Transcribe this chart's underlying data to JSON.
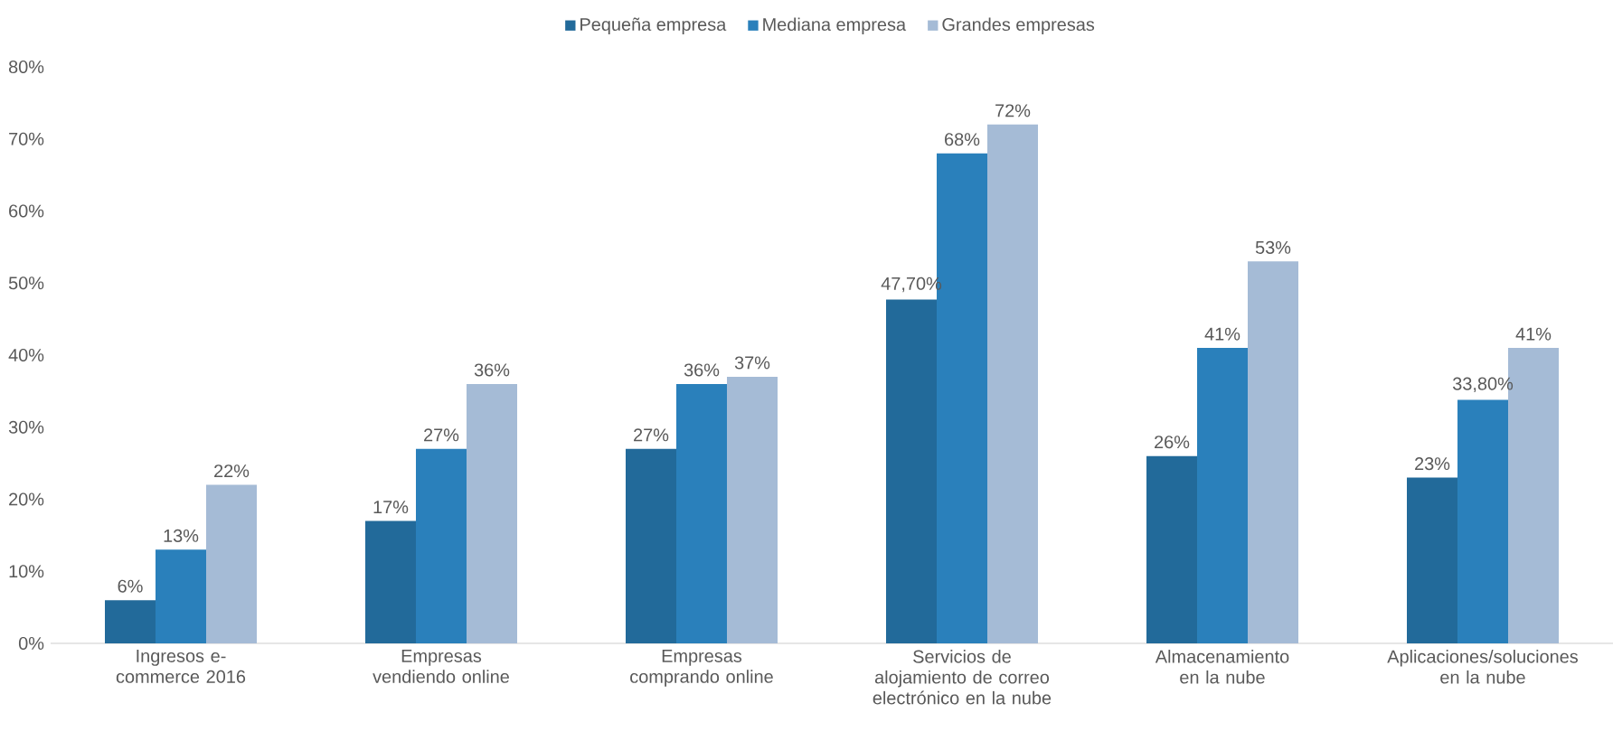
{
  "chart_data": {
    "type": "bar",
    "categories": [
      "Ingresos e-commerce 2016",
      "Empresas vendiendo online",
      "Empresas comprando online",
      "Servicios de alojamiento de correo electrónico en la nube",
      "Almacenamiento en la nube",
      "Aplicaciones/soluciones en la nube"
    ],
    "series": [
      {
        "name": "Pequeña empresa",
        "color": "#226a9a",
        "values": [
          6,
          17,
          27,
          47.7,
          26,
          23
        ],
        "value_labels": [
          "6%",
          "17%",
          "27%",
          "47,70%",
          "26%",
          "23%"
        ]
      },
      {
        "name": "Mediana empresa",
        "color": "#2a80bb",
        "values": [
          13,
          27,
          36,
          68,
          41,
          33.8
        ],
        "value_labels": [
          "13%",
          "27%",
          "36%",
          "68%",
          "41%",
          "33,80%"
        ]
      },
      {
        "name": "Grandes empresas",
        "color": "#a5bbd6",
        "values": [
          22,
          36,
          37,
          72,
          53,
          41
        ],
        "value_labels": [
          "22%",
          "36%",
          "37%",
          "72%",
          "53%",
          "41%"
        ]
      }
    ],
    "ylim": [
      0,
      80
    ],
    "yticks": [
      {
        "value": 0,
        "label": "0%"
      },
      {
        "value": 10,
        "label": "10%"
      },
      {
        "value": 20,
        "label": "20%"
      },
      {
        "value": 30,
        "label": "30%"
      },
      {
        "value": 40,
        "label": "40%"
      },
      {
        "value": 50,
        "label": "50%"
      },
      {
        "value": 60,
        "label": "60%"
      },
      {
        "value": 70,
        "label": "70%"
      },
      {
        "value": 80,
        "label": "80%"
      }
    ],
    "legend": "top"
  }
}
